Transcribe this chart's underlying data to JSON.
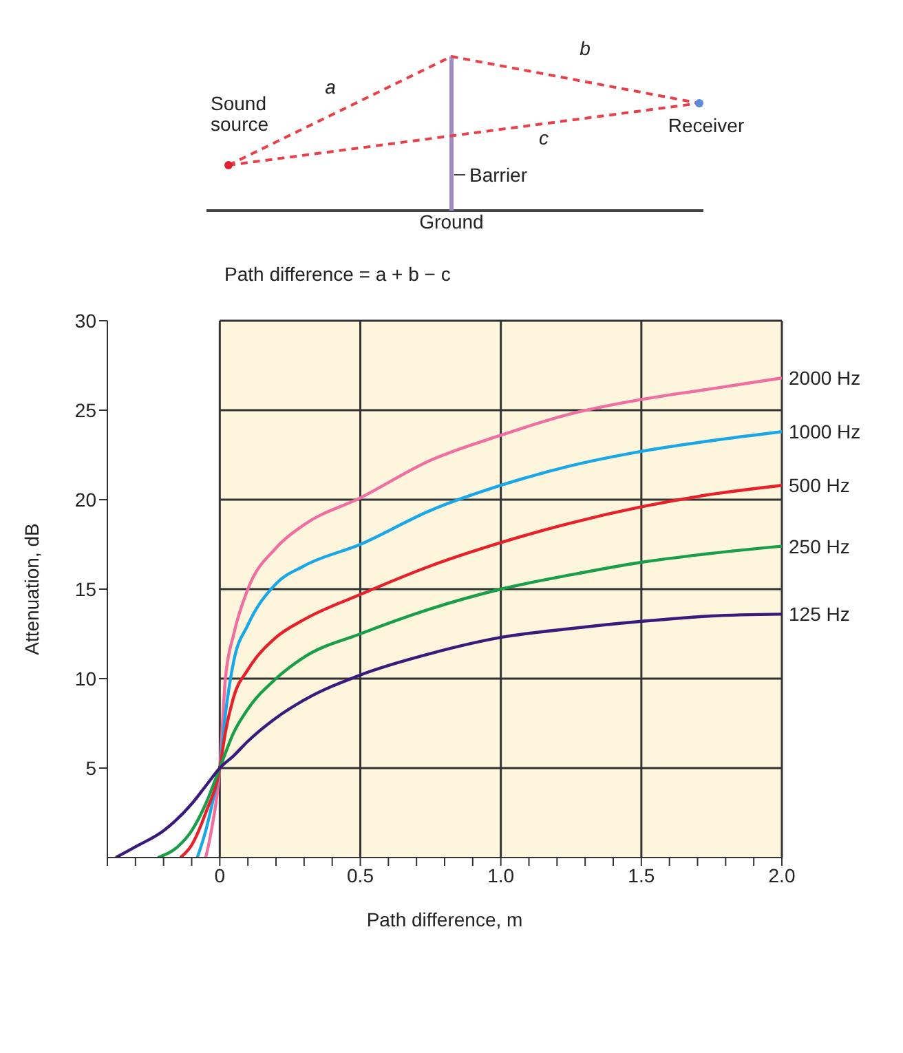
{
  "chart_data": {
    "type": "line",
    "xlabel": "Path difference, m",
    "ylabel": "Attenuation, dB",
    "annotations": [
      "Sound source",
      "a",
      "b",
      "c",
      "Barrier",
      "Receiver",
      "Ground",
      "Path difference = a + b − c"
    ],
    "xlim": [
      -0.4,
      2.0
    ],
    "xticks": [
      {
        "value": -0.4,
        "label": null
      },
      {
        "value": -0.3,
        "label": null
      },
      {
        "value": -0.2,
        "label": null
      },
      {
        "value": -0.1,
        "label": null
      },
      0,
      {
        "value": 0.1,
        "label": null
      },
      {
        "value": 0.2,
        "label": null
      },
      {
        "value": 0.3,
        "label": null
      },
      {
        "value": 0.4,
        "label": null
      },
      0.5,
      {
        "value": 0.6,
        "label": null
      },
      {
        "value": 0.7,
        "label": null
      },
      {
        "value": 0.8,
        "label": null
      },
      {
        "value": 0.9,
        "label": null
      },
      {
        "value": 1,
        "label": "1.0"
      },
      {
        "value": 1.1,
        "label": null
      },
      {
        "value": 1.2,
        "label": null
      },
      {
        "value": 1.3,
        "label": null
      },
      {
        "value": 1.4,
        "label": null
      },
      1.5,
      {
        "value": 1.6,
        "label": null
      },
      {
        "value": 1.7,
        "label": null
      },
      {
        "value": 1.8,
        "label": null
      },
      {
        "value": 1.9,
        "label": null
      },
      {
        "value": 2,
        "label": "2.0"
      }
    ],
    "ylim": [
      0,
      30
    ],
    "yticks": [
      5,
      10,
      15,
      20,
      25,
      30
    ],
    "grid": true,
    "marker": "none",
    "line_style": "solid",
    "bands": [
      {
        "axis": "x",
        "from": 0,
        "to": 2.0,
        "color": "#fdf6dc"
      }
    ],
    "series": [
      {
        "name": "2000 Hz",
        "color": "#f06fa0",
        "x": [
          -0.05,
          -0.03,
          0,
          0.02,
          0.05,
          0.1,
          0.2,
          0.3,
          0.5,
          0.75,
          1.0,
          1.25,
          1.5,
          1.75,
          2.0
        ],
        "values": [
          0,
          1.5,
          5,
          10,
          12.5,
          15,
          17.3,
          18.6,
          20.1,
          22.2,
          23.6,
          24.8,
          25.6,
          26.2,
          26.8
        ]
      },
      {
        "name": "1000 Hz",
        "color": "#1aa7e6",
        "x": [
          -0.08,
          -0.05,
          -0.02,
          0,
          0.02,
          0.05,
          0.1,
          0.2,
          0.3,
          0.5,
          0.75,
          1.0,
          1.25,
          1.5,
          1.75,
          2.0
        ],
        "values": [
          0,
          1.5,
          3.5,
          5,
          8,
          11,
          13,
          15.3,
          16.3,
          17.5,
          19.4,
          20.8,
          21.9,
          22.7,
          23.3,
          23.8
        ]
      },
      {
        "name": "500 Hz",
        "color": "#e8202a",
        "x": [
          -0.14,
          -0.1,
          -0.05,
          0,
          0.02,
          0.05,
          0.1,
          0.2,
          0.3,
          0.5,
          0.75,
          1.0,
          1.25,
          1.5,
          1.75,
          2.0
        ],
        "values": [
          0,
          0.7,
          2.5,
          5,
          7,
          9,
          10.5,
          12.3,
          13.3,
          14.7,
          16.3,
          17.6,
          18.7,
          19.6,
          20.3,
          20.8
        ]
      },
      {
        "name": "250 Hz",
        "color": "#1a9e4a",
        "x": [
          -0.22,
          -0.15,
          -0.1,
          -0.05,
          0,
          0.05,
          0.1,
          0.2,
          0.3,
          0.5,
          0.75,
          1.0,
          1.25,
          1.5,
          1.75,
          2.0
        ],
        "values": [
          0,
          0.6,
          1.5,
          3,
          5,
          7,
          8.3,
          10,
          11.2,
          12.5,
          13.9,
          15,
          15.8,
          16.5,
          17,
          17.4
        ]
      },
      {
        "name": "125 Hz",
        "color": "#3a1a7a",
        "x": [
          -0.37,
          -0.3,
          -0.2,
          -0.1,
          -0.05,
          0,
          0.05,
          0.1,
          0.2,
          0.3,
          0.5,
          0.75,
          1.0,
          1.25,
          1.5,
          1.75,
          2.0
        ],
        "values": [
          0,
          0.6,
          1.5,
          3,
          4,
          5,
          5.7,
          6.5,
          7.8,
          8.8,
          10.2,
          11.4,
          12.3,
          12.8,
          13.2,
          13.5,
          13.6
        ]
      }
    ]
  }
}
